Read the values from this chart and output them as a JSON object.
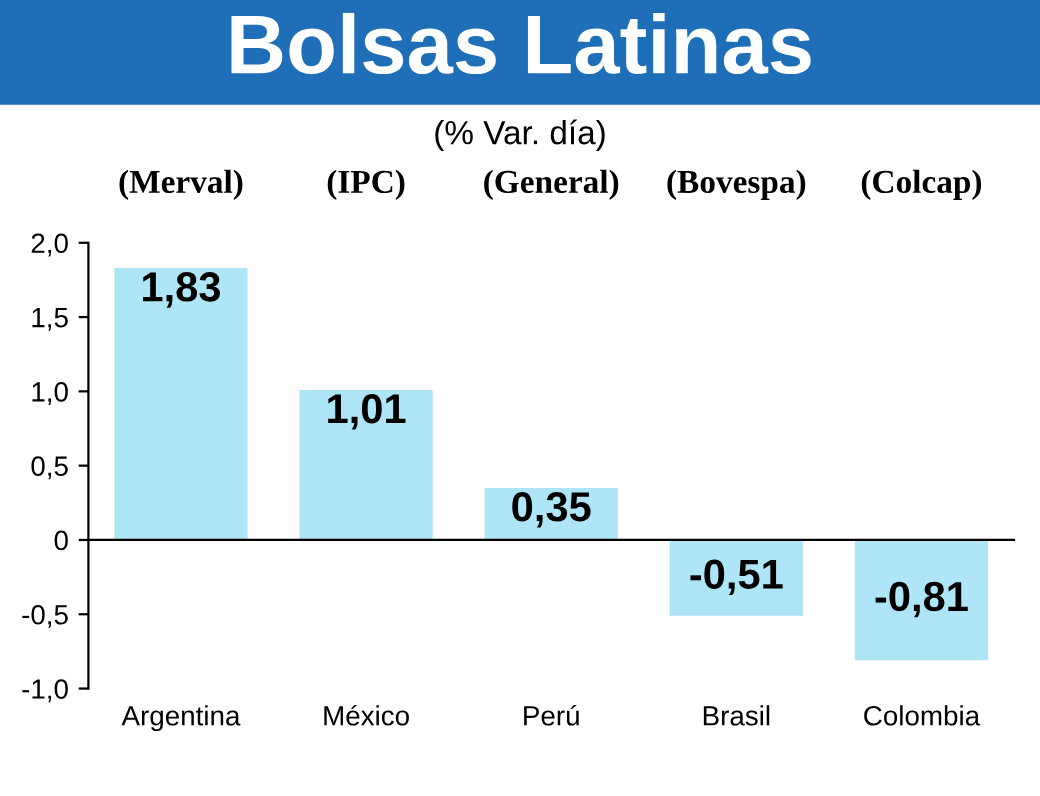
{
  "chart_data": {
    "type": "bar",
    "title": "Bolsas Latinas",
    "subtitle": "(% Var. día)",
    "categories": [
      "Argentina",
      "México",
      "Perú",
      "Brasil",
      "Colombia"
    ],
    "values": [
      1.83,
      1.01,
      0.35,
      -0.51,
      -0.81
    ],
    "value_labels": [
      "1,83",
      "1,01",
      "0,35",
      "-0,51",
      "-0,81"
    ],
    "color": "#aee6f8",
    "annotations": [
      "(Merval)",
      "(IPC)",
      "(General)",
      "(Bovespa)",
      "(Colcap)"
    ],
    "ylim": [
      -1.0,
      2.0
    ],
    "yticks": [
      {
        "value": -1.0,
        "label": "-1,0"
      },
      {
        "value": -0.5,
        "label": "-0,5"
      },
      0,
      {
        "value": 0.5,
        "label": "0,5"
      },
      {
        "value": 1.0,
        "label": "1,0"
      },
      {
        "value": 1.5,
        "label": "1,5"
      },
      {
        "value": 2.0,
        "label": "2,0"
      }
    ],
    "legend": false
  }
}
